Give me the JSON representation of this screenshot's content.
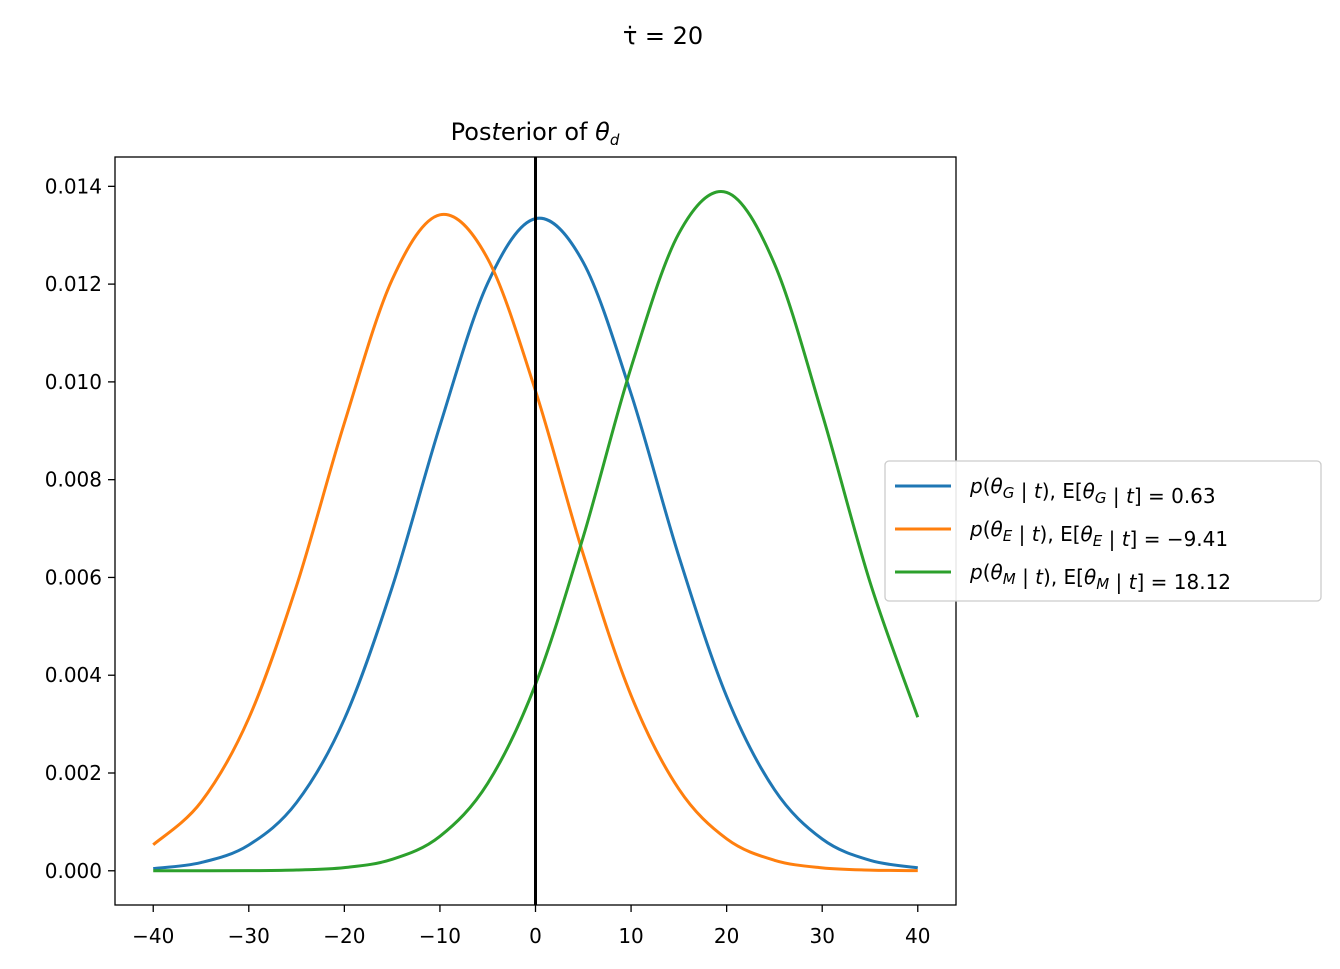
{
  "suptitle": "τ̇ = 20",
  "chart_data": {
    "type": "line",
    "title": "Posterior of θ_d",
    "xlabel": "",
    "ylabel": "",
    "xlim": [
      -44,
      44
    ],
    "ylim": [
      -0.0007,
      0.0146
    ],
    "xticks": [
      -40,
      -30,
      -20,
      -10,
      0,
      10,
      20,
      30,
      40
    ],
    "xtick_labels": [
      "−40",
      "−30",
      "−20",
      "−10",
      "0",
      "10",
      "20",
      "30",
      "40"
    ],
    "yticks": [
      0,
      0.002,
      0.004,
      0.006,
      0.008,
      0.01,
      0.012,
      0.014
    ],
    "ytick_labels": [
      "0.000",
      "0.002",
      "0.004",
      "0.006",
      "0.008",
      "0.010",
      "0.012",
      "0.014"
    ],
    "grid": false,
    "legend_position": "center-right outside",
    "vline": {
      "x": 0,
      "color": "#000000"
    },
    "x": [
      -40,
      -35,
      -30,
      -25,
      -20,
      -15,
      -10,
      -5,
      0,
      5,
      10,
      15,
      20,
      25,
      30,
      35,
      40
    ],
    "series": [
      {
        "name": "p(θ_G | t),  E[θ_G | t] = 0.63",
        "color": "#1f77b4",
        "values": [
          4.5e-05,
          0.000168,
          0.000528,
          0.001397,
          0.003103,
          0.005797,
          0.009104,
          0.012019,
          0.01334,
          0.012443,
          0.009759,
          0.006433,
          0.003566,
          0.001661,
          0.00065,
          0.000214,
          5.9e-05
        ]
      },
      {
        "name": "p(θ_E | t),  E[θ_E | t] = −9.41",
        "color": "#ff7f0e",
        "values": [
          0.000532,
          0.001405,
          0.003121,
          0.005831,
          0.009158,
          0.012091,
          0.013418,
          0.012518,
          0.009817,
          0.006472,
          0.003587,
          0.001671,
          0.000654,
          0.000215,
          6e-05,
          1.4e-05,
          3e-06
        ]
      },
      {
        "name": "p(θ_M | t),  E[θ_M | t] = 18.12",
        "color": "#2ca02c",
        "values": [
          0.0,
          5e-07,
          3e-06,
          1.5e-05,
          6.5e-05,
          0.000234,
          0.000705,
          0.001789,
          0.003814,
          0.006833,
          0.010294,
          0.013036,
          0.013876,
          0.012417,
          0.009341,
          0.005906,
          0.00314
        ]
      }
    ]
  }
}
